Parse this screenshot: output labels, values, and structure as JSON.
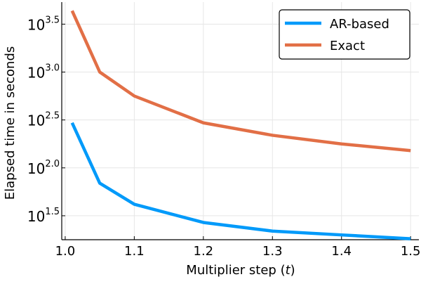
{
  "chart_data": {
    "type": "line",
    "xlabel": "Multiplier step (",
    "xlabel_var": "t",
    "xlabel_suffix": ")",
    "ylabel": "Elapsed time in seconds",
    "x_ticks": [
      {
        "value": 1.0,
        "label": "1.0"
      },
      {
        "value": 1.1,
        "label": "1.1"
      },
      {
        "value": 1.2,
        "label": "1.2"
      },
      {
        "value": 1.3,
        "label": "1.3"
      },
      {
        "value": 1.4,
        "label": "1.4"
      },
      {
        "value": 1.5,
        "label": "1.5"
      }
    ],
    "y_scale": "log10",
    "y_ticks": [
      {
        "exponent": 1.5,
        "base": "10",
        "sup": "1.5"
      },
      {
        "exponent": 2.0,
        "base": "10",
        "sup": "2.0"
      },
      {
        "exponent": 2.5,
        "base": "10",
        "sup": "2.5"
      },
      {
        "exponent": 3.0,
        "base": "10",
        "sup": "3.0"
      },
      {
        "exponent": 3.5,
        "base": "10",
        "sup": "3.5"
      }
    ],
    "xlim": [
      0.995,
      1.512
    ],
    "ylim_log10": [
      1.25,
      3.73
    ],
    "grid": true,
    "legend_position": "top-right",
    "x": [
      1.01,
      1.05,
      1.1,
      1.2,
      1.3,
      1.4,
      1.5
    ],
    "series": [
      {
        "name": "AR-based",
        "color": "#009AFA",
        "log10_values": [
          2.47,
          1.84,
          1.62,
          1.43,
          1.34,
          1.3,
          1.26
        ]
      },
      {
        "name": "Exact",
        "color": "#E26F46",
        "log10_values": [
          3.64,
          3.0,
          2.75,
          2.47,
          2.34,
          2.25,
          2.18
        ]
      }
    ]
  }
}
